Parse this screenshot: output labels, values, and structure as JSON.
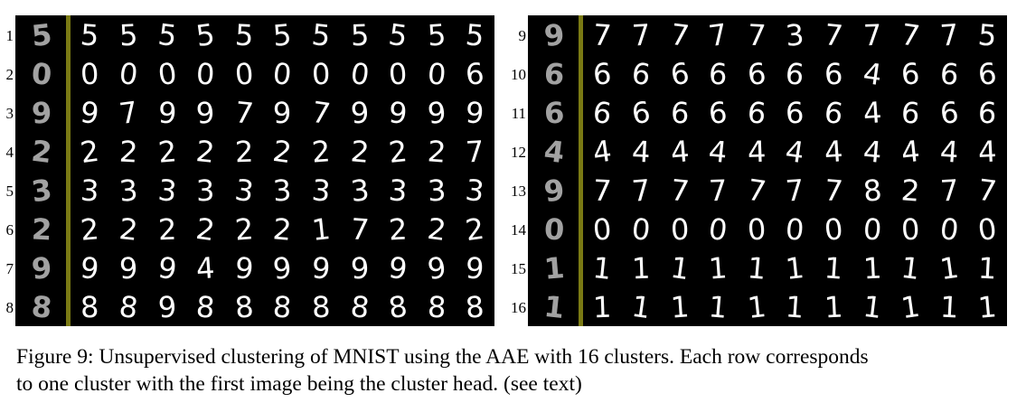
{
  "figure": {
    "caption_line1": "Figure 9: Unsupervised clustering of MNIST using the AAE with 16 clusters. Each row corresponds",
    "caption_line2": "to one cluster with the first image being the cluster head. (see text)",
    "left_panel": {
      "rows": [
        {
          "label": "1",
          "digits": [
            "5",
            "5",
            "5",
            "5",
            "5",
            "5",
            "5",
            "5",
            "5",
            "5",
            "5",
            "5"
          ]
        },
        {
          "label": "2",
          "digits": [
            "0",
            "0",
            "0",
            "0",
            "0",
            "0",
            "0",
            "0",
            "0",
            "0",
            "0",
            "6"
          ]
        },
        {
          "label": "3",
          "digits": [
            "9",
            "9",
            "7",
            "9",
            "9",
            "7",
            "9",
            "7",
            "9",
            "9",
            "9",
            "9"
          ]
        },
        {
          "label": "4",
          "digits": [
            "2",
            "2",
            "2",
            "2",
            "2",
            "2",
            "2",
            "2",
            "2",
            "2",
            "2",
            "7"
          ]
        },
        {
          "label": "5",
          "digits": [
            "3",
            "3",
            "3",
            "3",
            "3",
            "3",
            "3",
            "3",
            "3",
            "3",
            "3",
            "3"
          ]
        },
        {
          "label": "6",
          "digits": [
            "2",
            "2",
            "2",
            "2",
            "2",
            "2",
            "2",
            "1",
            "7",
            "2",
            "2",
            "2"
          ]
        },
        {
          "label": "7",
          "digits": [
            "9",
            "9",
            "9",
            "9",
            "4",
            "9",
            "9",
            "9",
            "9",
            "9",
            "9",
            "9"
          ]
        },
        {
          "label": "8",
          "digits": [
            "8",
            "8",
            "8",
            "9",
            "8",
            "8",
            "8",
            "8",
            "8",
            "8",
            "8",
            "8"
          ]
        }
      ]
    },
    "right_panel": {
      "rows": [
        {
          "label": "9",
          "digits": [
            "9",
            "7",
            "7",
            "7",
            "7",
            "7",
            "3",
            "7",
            "7",
            "7",
            "7",
            "5"
          ]
        },
        {
          "label": "10",
          "digits": [
            "6",
            "6",
            "6",
            "6",
            "6",
            "6",
            "6",
            "6",
            "4",
            "6",
            "6",
            "6"
          ]
        },
        {
          "label": "11",
          "digits": [
            "6",
            "6",
            "6",
            "6",
            "6",
            "6",
            "6",
            "6",
            "4",
            "6",
            "6",
            "6"
          ]
        },
        {
          "label": "12",
          "digits": [
            "4",
            "4",
            "4",
            "4",
            "4",
            "4",
            "4",
            "4",
            "4",
            "4",
            "4",
            "4"
          ]
        },
        {
          "label": "13",
          "digits": [
            "9",
            "7",
            "7",
            "7",
            "7",
            "7",
            "7",
            "7",
            "8",
            "2",
            "7",
            "7"
          ]
        },
        {
          "label": "14",
          "digits": [
            "0",
            "0",
            "0",
            "0",
            "0",
            "0",
            "0",
            "0",
            "0",
            "0",
            "0",
            "0"
          ]
        },
        {
          "label": "15",
          "digits": [
            "1",
            "1",
            "1",
            "1",
            "1",
            "1",
            "1",
            "1",
            "1",
            "1",
            "1",
            "1"
          ]
        },
        {
          "label": "16",
          "digits": [
            "1",
            "1",
            "1",
            "1",
            "1",
            "1",
            "1",
            "1",
            "1",
            "1",
            "1",
            "1"
          ]
        }
      ]
    }
  }
}
